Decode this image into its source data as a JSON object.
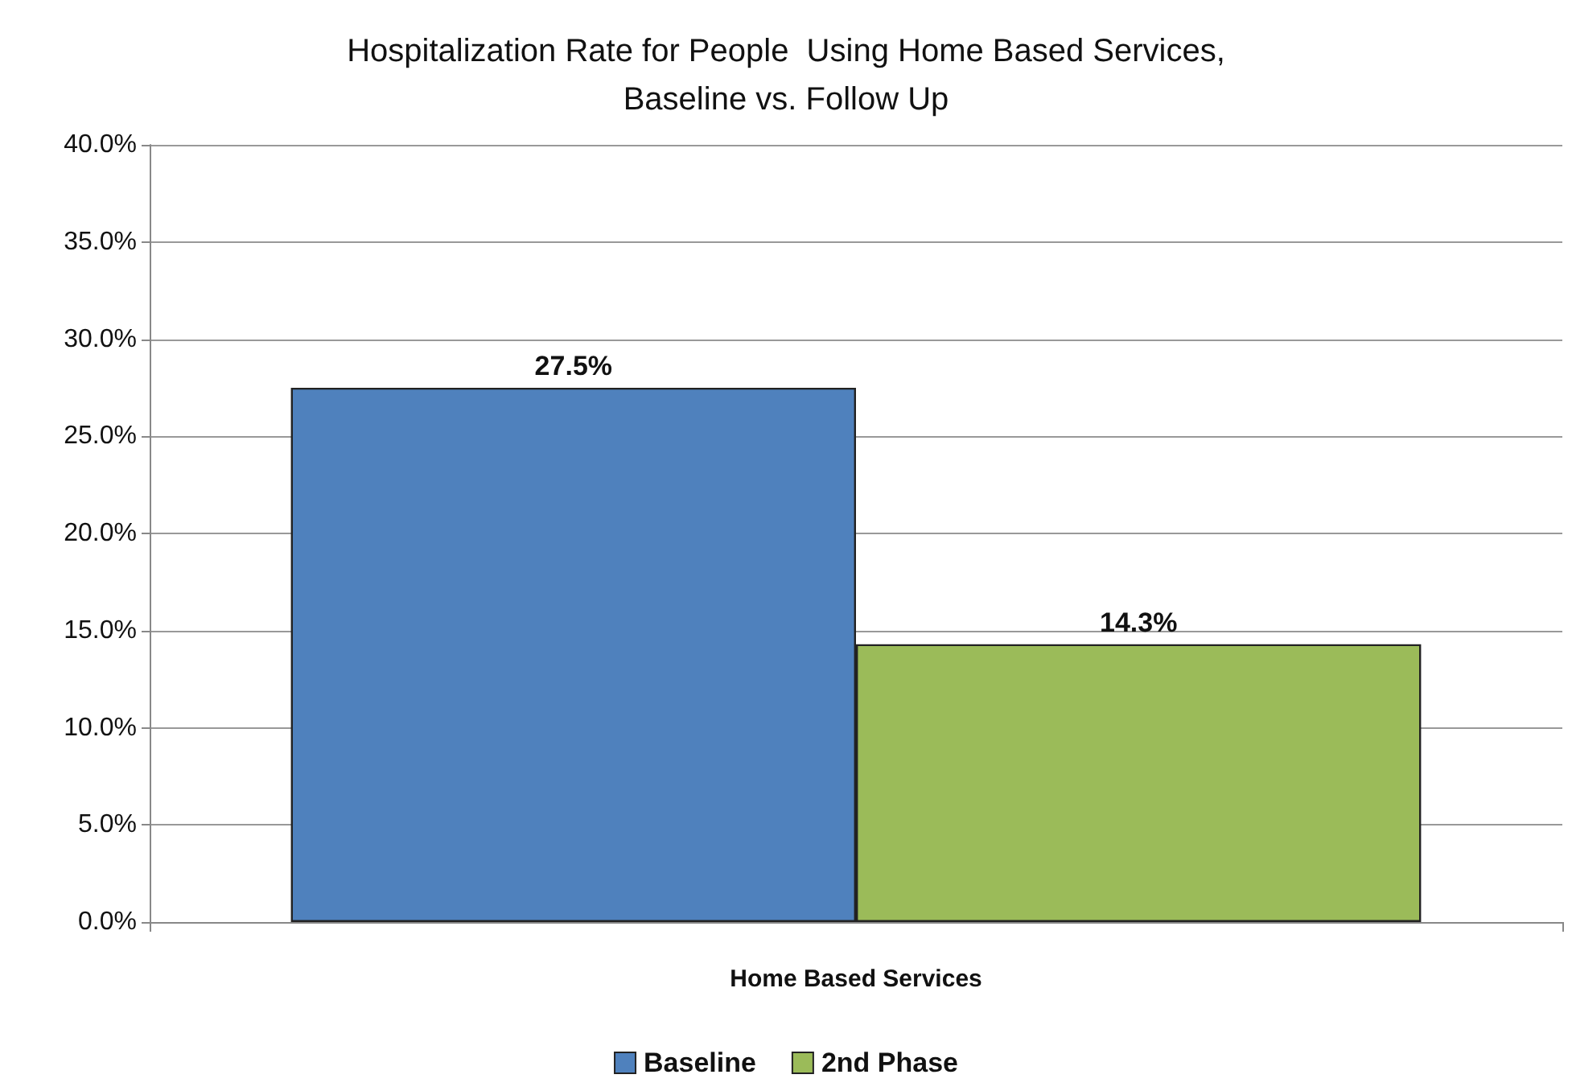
{
  "chart_data": {
    "type": "bar",
    "title": "Hospitalization Rate for People  Using Home Based Services,\nBaseline vs. Follow Up",
    "categories": [
      "Home Based Services"
    ],
    "series": [
      {
        "name": "Baseline",
        "color": "#4f81bd",
        "values": [
          27.5
        ],
        "value_labels": [
          "27.5%"
        ]
      },
      {
        "name": "2nd Phase",
        "color": "#9bbb59",
        "values": [
          14.3
        ],
        "value_labels": [
          "14.3%"
        ]
      }
    ],
    "ylim": [
      0,
      40
    ],
    "yticks": [
      {
        "value": 0,
        "label": "0.0%"
      },
      {
        "value": 5,
        "label": "5.0%"
      },
      {
        "value": 10,
        "label": "10.0%"
      },
      {
        "value": 15,
        "label": "15.0%"
      },
      {
        "value": 20,
        "label": "20.0%"
      },
      {
        "value": 25,
        "label": "25.0%"
      },
      {
        "value": 30,
        "label": "30.0%"
      },
      {
        "value": 35,
        "label": "35.0%"
      },
      {
        "value": 40,
        "label": "40.0%"
      }
    ],
    "grid": "y",
    "legend": "bottom"
  }
}
